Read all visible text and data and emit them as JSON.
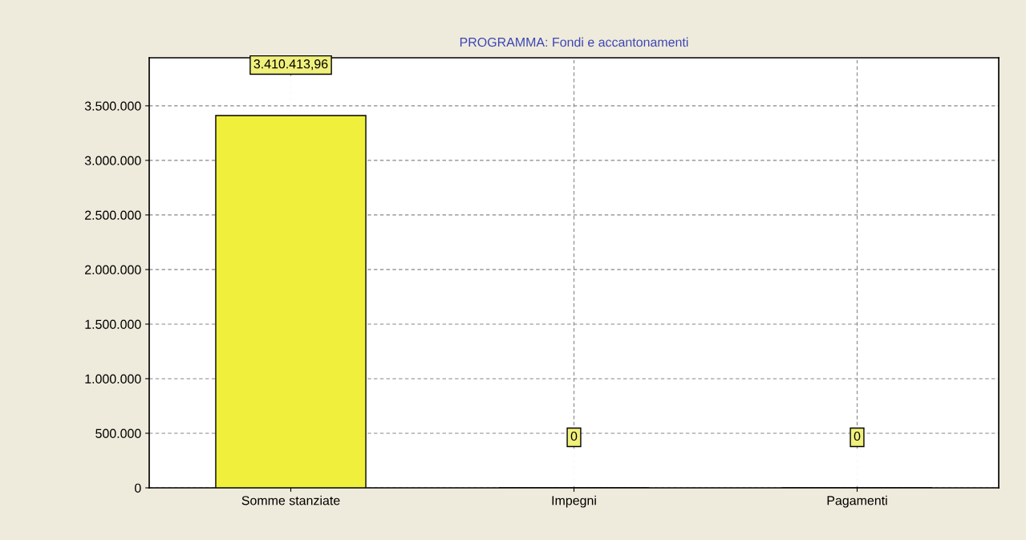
{
  "chart_data": {
    "type": "bar",
    "title": "PROGRAMMA: Fondi e accantonamenti",
    "categories": [
      "Somme stanziate",
      "Impegni",
      "Pagamenti"
    ],
    "values": [
      3410413.96,
      0,
      0
    ],
    "value_labels": [
      "3.410.413,96",
      "0",
      "0"
    ],
    "color": "#f0f03c",
    "ylim": [
      0,
      3940000
    ],
    "yticks": [
      {
        "value": 0,
        "label": "0"
      },
      {
        "value": 500000,
        "label": "500.000"
      },
      {
        "value": 1000000,
        "label": "1.000.000"
      },
      {
        "value": 1500000,
        "label": "1.500.000"
      },
      {
        "value": 2000000,
        "label": "2.000.000"
      },
      {
        "value": 2500000,
        "label": "2.500.000"
      },
      {
        "value": 3000000,
        "label": "3.000.000"
      },
      {
        "value": 3500000,
        "label": "3.500.000"
      }
    ],
    "grid": true
  }
}
